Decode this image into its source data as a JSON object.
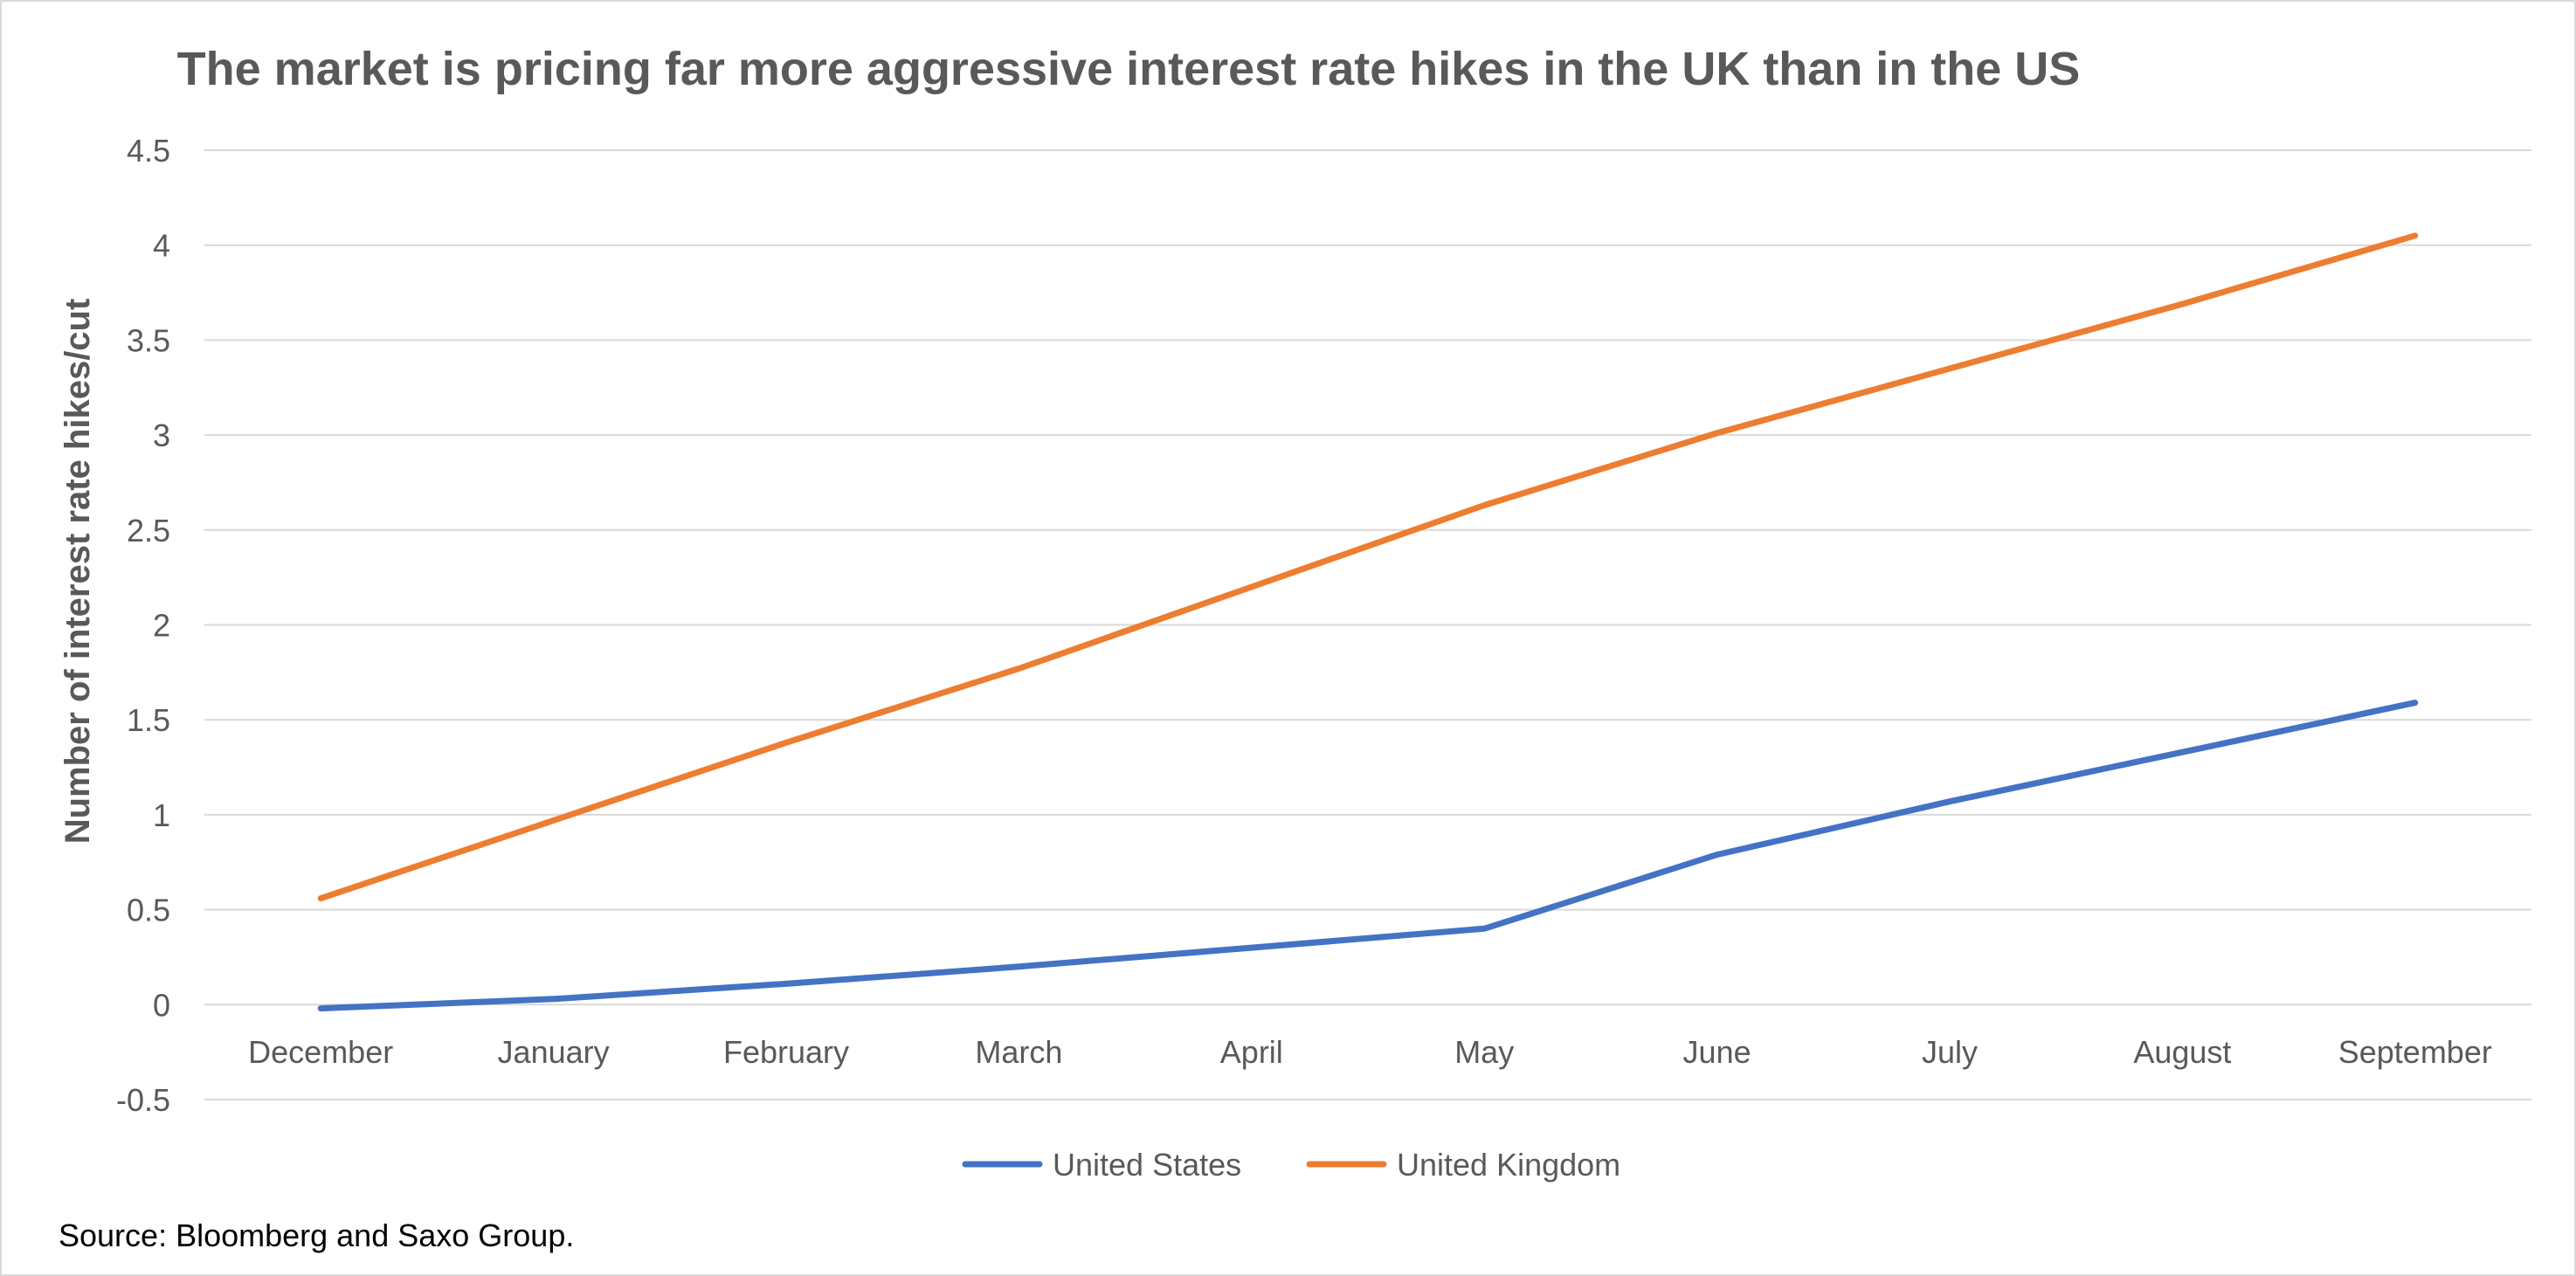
{
  "chart_data": {
    "type": "line",
    "title": "The market is pricing far more aggressive interest rate hikes in the UK than in the US",
    "xlabel": "",
    "ylabel": "Number of interest rate hikes/cut",
    "categories": [
      "December",
      "January",
      "February",
      "March",
      "April",
      "May",
      "June",
      "July",
      "August",
      "September"
    ],
    "ylim": [
      -0.5,
      4.5
    ],
    "yticks": [
      -0.5,
      0,
      0.5,
      1,
      1.5,
      2,
      2.5,
      3,
      3.5,
      4,
      4.5
    ],
    "ytick_labels": [
      "-0.5",
      "0",
      "0.5",
      "1",
      "1.5",
      "2",
      "2.5",
      "3",
      "3.5",
      "4",
      "4.5"
    ],
    "grid": true,
    "legend_position": "bottom-center",
    "series": [
      {
        "name": "United States",
        "color": "#4472c4",
        "values": [
          -0.02,
          0.03,
          0.11,
          0.2,
          0.3,
          0.4,
          0.79,
          1.07,
          1.33,
          1.59
        ]
      },
      {
        "name": "United Kingdom",
        "color": "#ed7d31",
        "values": [
          0.56,
          0.97,
          1.38,
          1.77,
          2.2,
          2.63,
          3.01,
          3.35,
          3.69,
          4.05
        ]
      }
    ]
  },
  "source": "Source: Bloomberg and Saxo Group."
}
